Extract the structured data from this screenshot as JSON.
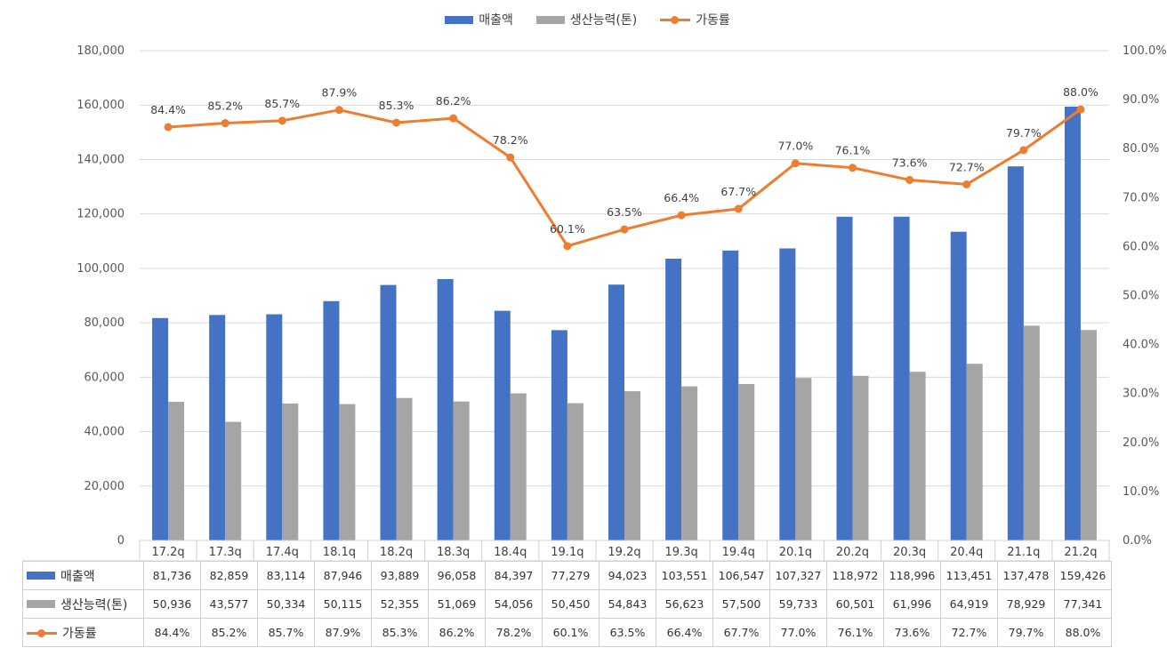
{
  "chart_data": {
    "type": "bar",
    "categories": [
      "17.2q",
      "17.3q",
      "17.4q",
      "18.1q",
      "18.2q",
      "18.3q",
      "18.4q",
      "19.1q",
      "19.2q",
      "19.3q",
      "19.4q",
      "20.1q",
      "20.2q",
      "20.3q",
      "20.4q",
      "21.1q",
      "21.2q"
    ],
    "series": [
      {
        "name": "매출액",
        "type": "bar",
        "axis": "left",
        "color": "#4472C4",
        "values": [
          81736,
          82859,
          83114,
          87946,
          93889,
          96058,
          84397,
          77279,
          94023,
          103551,
          106547,
          107327,
          118972,
          118996,
          113451,
          137478,
          159426
        ],
        "labels": [
          "81,736",
          "82,859",
          "83,114",
          "87,946",
          "93,889",
          "96,058",
          "84,397",
          "77,279",
          "94,023",
          "103,551",
          "106,547",
          "107,327",
          "118,972",
          "118,996",
          "113,451",
          "137,478",
          "159,426"
        ]
      },
      {
        "name": "생산능력(톤)",
        "type": "bar",
        "axis": "left",
        "color": "#A5A5A5",
        "values": [
          50936,
          43577,
          50334,
          50115,
          52355,
          51069,
          54056,
          50450,
          54843,
          56623,
          57500,
          59733,
          60501,
          61996,
          64919,
          78929,
          77341
        ],
        "labels": [
          "50,936",
          "43,577",
          "50,334",
          "50,115",
          "52,355",
          "51,069",
          "54,056",
          "50,450",
          "54,843",
          "56,623",
          "57,500",
          "59,733",
          "60,501",
          "61,996",
          "64,919",
          "78,929",
          "77,341"
        ]
      },
      {
        "name": "가동률",
        "type": "line",
        "axis": "right",
        "color": "#ED7D31",
        "values": [
          84.4,
          85.2,
          85.7,
          87.9,
          85.3,
          86.2,
          78.2,
          60.1,
          63.5,
          66.4,
          67.7,
          77.0,
          76.1,
          73.6,
          72.7,
          79.7,
          88.0
        ],
        "labels": [
          "84.4%",
          "85.2%",
          "85.7%",
          "87.9%",
          "85.3%",
          "86.2%",
          "78.2%",
          "60.1%",
          "63.5%",
          "66.4%",
          "67.7%",
          "77.0%",
          "76.1%",
          "73.6%",
          "72.7%",
          "79.7%",
          "88.0%"
        ]
      }
    ],
    "ylim": [
      0,
      180000
    ],
    "y2lim": [
      0,
      100
    ],
    "y_ticks": [
      "0",
      "20,000",
      "40,000",
      "60,000",
      "80,000",
      "100,000",
      "120,000",
      "140,000",
      "160,000",
      "180,000"
    ],
    "y2_ticks": [
      "0.0%",
      "10.0%",
      "20.0%",
      "30.0%",
      "40.0%",
      "50.0%",
      "60.0%",
      "70.0%",
      "80.0%",
      "90.0%",
      "100.0%"
    ],
    "legend_position": "top-center",
    "grid": true,
    "data_table": true
  }
}
